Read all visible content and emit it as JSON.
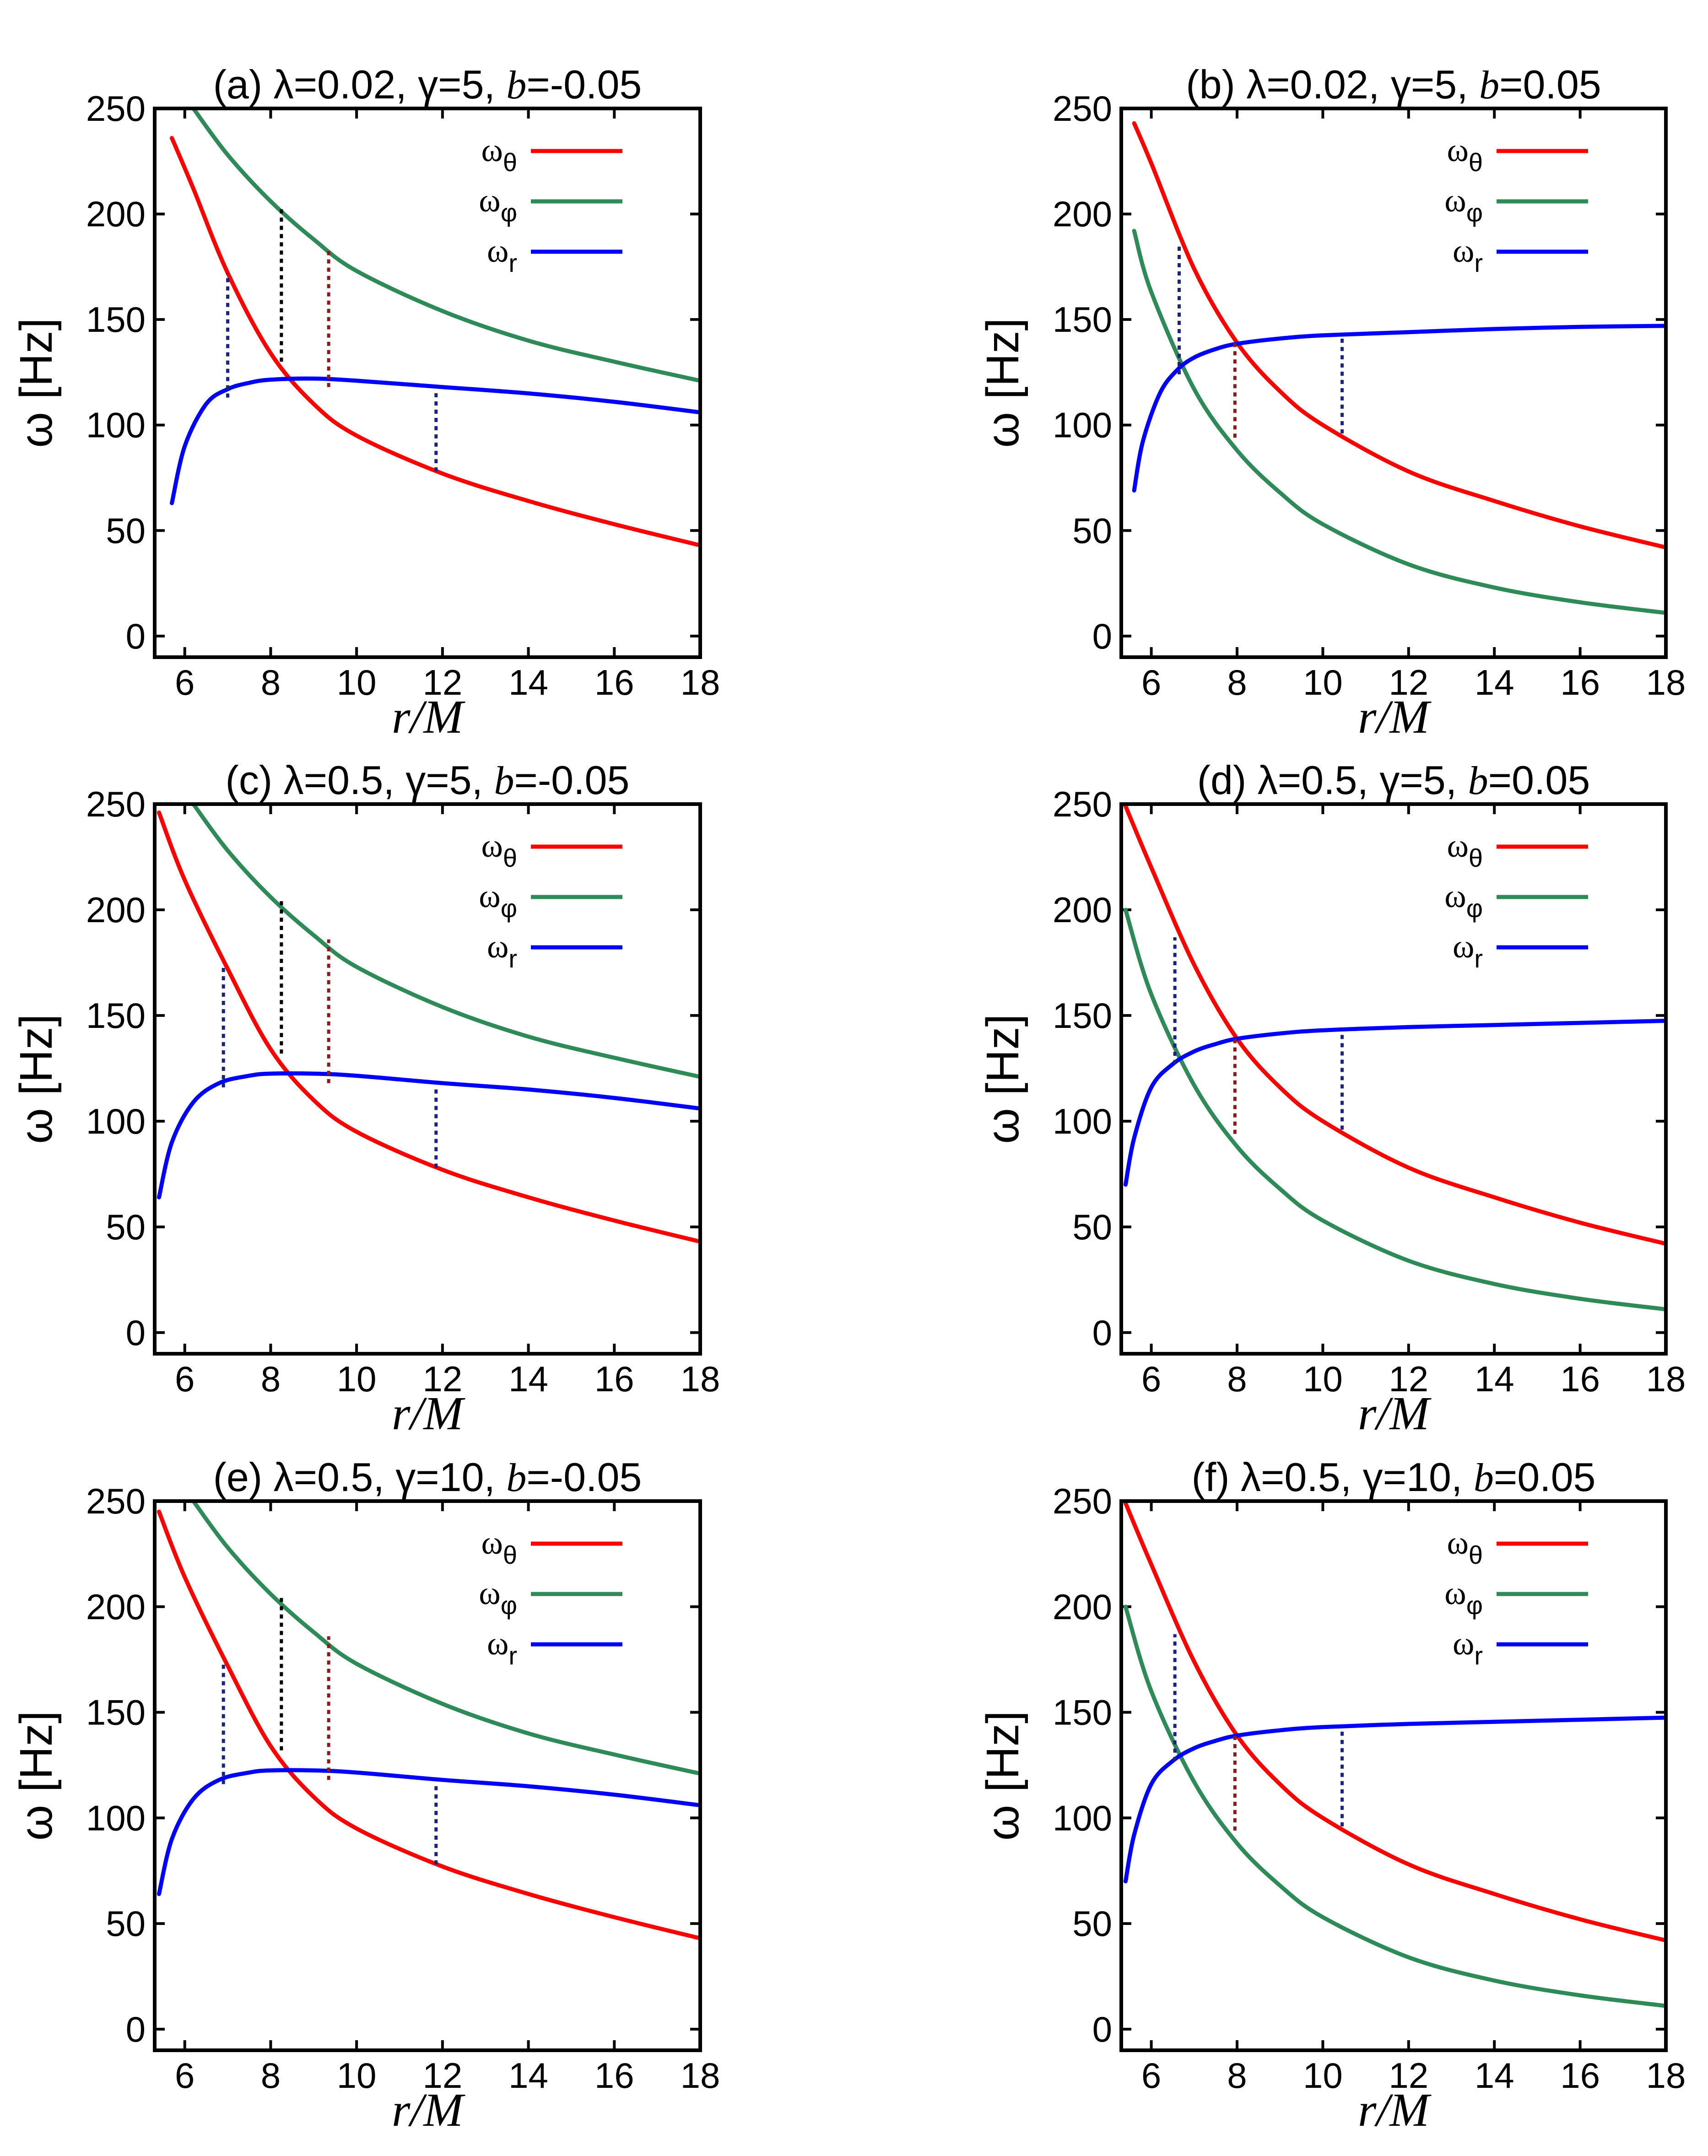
{
  "chart_data": [
    {
      "type": "line",
      "title": {
        "prefix": "(a) λ=0.02, γ=5, ",
        "b_symbol": "b",
        "b_value": "=-0.05"
      },
      "xlabel": "r/M",
      "ylabel": "ω [Hz]",
      "xlim": [
        5.3,
        18
      ],
      "ylim": [
        -10,
        250
      ],
      "xticks": [
        6,
        8,
        10,
        12,
        14,
        16,
        18
      ],
      "yticks": [
        0,
        50,
        100,
        150,
        200,
        250
      ],
      "legend_position": "top-right",
      "series": [
        {
          "name": "ωθ",
          "symbol": "ω",
          "sub": "θ",
          "color": "#ff0000",
          "x": [
            5.7,
            6.2,
            7.0,
            8.0,
            9.0,
            10.0,
            12.0,
            14.0,
            16.0,
            18.0
          ],
          "y": [
            236,
            212,
            172,
            134,
            110,
            95,
            77,
            64,
            53,
            43
          ]
        },
        {
          "name": "ωφ",
          "symbol": "ω",
          "sub": "φ",
          "color": "#2e8b57",
          "x": [
            6.2,
            7.0,
            8.0,
            9.0,
            10.0,
            12.0,
            14.0,
            16.0,
            18.0
          ],
          "y": [
            250,
            228,
            206,
            188,
            173,
            154,
            140,
            130,
            121
          ]
        },
        {
          "name": "ωr",
          "symbol": "ω",
          "sub": "r",
          "color": "#0000ff",
          "x": [
            5.7,
            6.0,
            6.5,
            7.0,
            7.5,
            8.0,
            9.0,
            10.0,
            12.0,
            14.0,
            16.0,
            18.0
          ],
          "y": [
            63,
            90,
            110,
            117,
            120,
            121.5,
            122,
            121,
            118,
            115,
            111,
            106
          ]
        }
      ],
      "markers": [
        {
          "x": 7.0,
          "y1": 113,
          "y2": 172,
          "color": "#1a237e"
        },
        {
          "x": 8.25,
          "y1": 130,
          "y2": 203,
          "color": "#000000"
        },
        {
          "x": 9.35,
          "y1": 118,
          "y2": 184,
          "color": "#8b1a1a"
        },
        {
          "x": 11.85,
          "y1": 78,
          "y2": 117,
          "color": "#1a237e"
        }
      ]
    },
    {
      "type": "line",
      "title": {
        "prefix": "(b) λ=0.02, γ=5, ",
        "b_symbol": "b",
        "b_value": "=0.05"
      },
      "xlabel": "r/M",
      "ylabel": "ω [Hz]",
      "xlim": [
        5.3,
        18
      ],
      "ylim": [
        -10,
        250
      ],
      "xticks": [
        6,
        8,
        10,
        12,
        14,
        16,
        18
      ],
      "yticks": [
        0,
        50,
        100,
        150,
        200,
        250
      ],
      "legend_position": "top-right",
      "series": [
        {
          "name": "ωθ",
          "symbol": "ω",
          "sub": "θ",
          "color": "#ff0000",
          "x": [
            5.6,
            6.0,
            7.0,
            8.0,
            9.0,
            10.0,
            12.0,
            14.0,
            16.0,
            18.0
          ],
          "y": [
            243,
            224,
            174,
            139,
            116,
            100,
            78,
            64,
            52,
            42
          ]
        },
        {
          "name": "ωφ",
          "symbol": "ω",
          "sub": "φ",
          "color": "#2e8b57",
          "x": [
            5.6,
            6.0,
            7.0,
            8.0,
            9.0,
            10.0,
            12.0,
            14.0,
            16.0,
            18.0
          ],
          "y": [
            192,
            163,
            117,
            88,
            68,
            53,
            34,
            23,
            16,
            11
          ]
        },
        {
          "name": "ωr",
          "symbol": "ω",
          "sub": "r",
          "color": "#0000ff",
          "x": [
            5.6,
            5.8,
            6.2,
            6.6,
            7.0,
            7.5,
            8.0,
            9.0,
            10.0,
            12.0,
            14.0,
            16.0,
            18.0
          ],
          "y": [
            69,
            92,
            115,
            126,
            132,
            136,
            138.5,
            141,
            142.5,
            144,
            145.5,
            146.5,
            147
          ]
        }
      ],
      "markers": [
        {
          "x": 6.65,
          "y1": 124,
          "y2": 185,
          "color": "#1a237e"
        },
        {
          "x": 7.95,
          "y1": 94,
          "y2": 139,
          "color": "#8b1a1a"
        },
        {
          "x": 10.45,
          "y1": 96,
          "y2": 143,
          "color": "#1a237e"
        }
      ]
    },
    {
      "type": "line",
      "title": {
        "prefix": "(c) λ=0.5, γ=5, ",
        "b_symbol": "b",
        "b_value": "=-0.05"
      },
      "xlabel": "r/M",
      "ylabel": "ω [Hz]",
      "xlim": [
        5.3,
        18
      ],
      "ylim": [
        -10,
        250
      ],
      "xticks": [
        6,
        8,
        10,
        12,
        14,
        16,
        18
      ],
      "yticks": [
        0,
        50,
        100,
        150,
        200,
        250
      ],
      "legend_position": "top-right",
      "series": [
        {
          "name": "ωθ",
          "symbol": "ω",
          "sub": "θ",
          "color": "#ff0000",
          "x": [
            5.4,
            6.0,
            7.0,
            8.0,
            9.0,
            10.0,
            12.0,
            14.0,
            16.0,
            18.0
          ],
          "y": [
            246,
            214,
            172,
            134,
            110,
            95,
            77,
            64,
            53,
            43
          ]
        },
        {
          "name": "ωφ",
          "symbol": "ω",
          "sub": "φ",
          "color": "#2e8b57",
          "x": [
            6.2,
            7.0,
            8.0,
            9.0,
            10.0,
            12.0,
            14.0,
            16.0,
            18.0
          ],
          "y": [
            250,
            228,
            206,
            188,
            173,
            154,
            140,
            130,
            121
          ]
        },
        {
          "name": "ωr",
          "symbol": "ω",
          "sub": "r",
          "color": "#0000ff",
          "x": [
            5.4,
            5.7,
            6.2,
            6.8,
            7.5,
            8.0,
            9.0,
            10.0,
            12.0,
            14.0,
            16.0,
            18.0
          ],
          "y": [
            64,
            90,
            109,
            118,
            121.5,
            122.5,
            122.5,
            121.5,
            118,
            115,
            111,
            106
          ]
        }
      ],
      "markers": [
        {
          "x": 6.9,
          "y1": 116,
          "y2": 173,
          "color": "#1a237e"
        },
        {
          "x": 8.25,
          "y1": 132,
          "y2": 205,
          "color": "#000000"
        },
        {
          "x": 9.35,
          "y1": 118,
          "y2": 186,
          "color": "#8b1a1a"
        },
        {
          "x": 11.85,
          "y1": 78,
          "y2": 117,
          "color": "#1a237e"
        }
      ]
    },
    {
      "type": "line",
      "title": {
        "prefix": "(d) λ=0.5, γ=5, ",
        "b_symbol": "b",
        "b_value": "=0.05"
      },
      "xlabel": "r/M",
      "ylabel": "ω [Hz]",
      "xlim": [
        5.3,
        18
      ],
      "ylim": [
        -10,
        250
      ],
      "xticks": [
        6,
        8,
        10,
        12,
        14,
        16,
        18
      ],
      "yticks": [
        0,
        50,
        100,
        150,
        200,
        250
      ],
      "legend_position": "top-right",
      "series": [
        {
          "name": "ωθ",
          "symbol": "ω",
          "sub": "θ",
          "color": "#ff0000",
          "x": [
            5.4,
            6.0,
            7.0,
            8.0,
            9.0,
            10.0,
            12.0,
            14.0,
            16.0,
            18.0
          ],
          "y": [
            249,
            220,
            174,
            139,
            116,
            100,
            78,
            64,
            52,
            42
          ]
        },
        {
          "name": "ωφ",
          "symbol": "ω",
          "sub": "φ",
          "color": "#2e8b57",
          "x": [
            5.4,
            6.0,
            7.0,
            8.0,
            9.0,
            10.0,
            12.0,
            14.0,
            16.0,
            18.0
          ],
          "y": [
            200,
            160,
            117,
            88,
            68,
            53,
            34,
            23,
            16,
            11
          ]
        },
        {
          "name": "ωr",
          "symbol": "ω",
          "sub": "r",
          "color": "#0000ff",
          "x": [
            5.4,
            5.6,
            6.0,
            6.5,
            7.0,
            7.5,
            8.0,
            9.0,
            10.0,
            12.0,
            14.0,
            16.0,
            18.0
          ],
          "y": [
            70,
            92,
            116,
            127,
            133,
            136.5,
            139,
            141.5,
            143,
            144.5,
            145.5,
            146.5,
            147.5
          ]
        }
      ],
      "markers": [
        {
          "x": 6.55,
          "y1": 127,
          "y2": 187,
          "color": "#1a237e"
        },
        {
          "x": 7.95,
          "y1": 94,
          "y2": 139,
          "color": "#8b1a1a"
        },
        {
          "x": 10.45,
          "y1": 96,
          "y2": 143,
          "color": "#1a237e"
        }
      ]
    },
    {
      "type": "line",
      "title": {
        "prefix": "(e) λ=0.5, γ=10, ",
        "b_symbol": "b",
        "b_value": "=-0.05"
      },
      "xlabel": "r/M",
      "ylabel": "ω [Hz]",
      "xlim": [
        5.3,
        18
      ],
      "ylim": [
        -10,
        250
      ],
      "xticks": [
        6,
        8,
        10,
        12,
        14,
        16,
        18
      ],
      "yticks": [
        0,
        50,
        100,
        150,
        200,
        250
      ],
      "legend_position": "top-right",
      "series": [
        {
          "name": "ωθ",
          "symbol": "ω",
          "sub": "θ",
          "color": "#ff0000",
          "x": [
            5.4,
            6.0,
            7.0,
            8.0,
            9.0,
            10.0,
            12.0,
            14.0,
            16.0,
            18.0
          ],
          "y": [
            245,
            214,
            172,
            134,
            110,
            95,
            77,
            64,
            53,
            43
          ]
        },
        {
          "name": "ωφ",
          "symbol": "ω",
          "sub": "φ",
          "color": "#2e8b57",
          "x": [
            6.2,
            7.0,
            8.0,
            9.0,
            10.0,
            12.0,
            14.0,
            16.0,
            18.0
          ],
          "y": [
            250,
            228,
            206,
            188,
            173,
            154,
            140,
            130,
            121
          ]
        },
        {
          "name": "ωr",
          "symbol": "ω",
          "sub": "r",
          "color": "#0000ff",
          "x": [
            5.4,
            5.7,
            6.2,
            6.8,
            7.5,
            8.0,
            9.0,
            10.0,
            12.0,
            14.0,
            16.0,
            18.0
          ],
          "y": [
            64,
            90,
            109,
            118,
            121.5,
            122.5,
            122.5,
            121.5,
            118,
            115,
            111,
            106
          ]
        }
      ],
      "markers": [
        {
          "x": 6.9,
          "y1": 116,
          "y2": 173,
          "color": "#1a237e"
        },
        {
          "x": 8.25,
          "y1": 132,
          "y2": 205,
          "color": "#000000"
        },
        {
          "x": 9.35,
          "y1": 118,
          "y2": 186,
          "color": "#8b1a1a"
        },
        {
          "x": 11.85,
          "y1": 78,
          "y2": 117,
          "color": "#1a237e"
        }
      ]
    },
    {
      "type": "line",
      "title": {
        "prefix": "(f) λ=0.5, γ=10, ",
        "b_symbol": "b",
        "b_value": "=0.05"
      },
      "xlabel": "r/M",
      "ylabel": "ω [Hz]",
      "xlim": [
        5.3,
        18
      ],
      "ylim": [
        -10,
        250
      ],
      "xticks": [
        6,
        8,
        10,
        12,
        14,
        16,
        18
      ],
      "yticks": [
        0,
        50,
        100,
        150,
        200,
        250
      ],
      "legend_position": "top-right",
      "series": [
        {
          "name": "ωθ",
          "symbol": "ω",
          "sub": "θ",
          "color": "#ff0000",
          "x": [
            5.4,
            6.0,
            7.0,
            8.0,
            9.0,
            10.0,
            12.0,
            14.0,
            16.0,
            18.0
          ],
          "y": [
            249,
            220,
            174,
            139,
            116,
            100,
            78,
            64,
            52,
            42
          ]
        },
        {
          "name": "ωφ",
          "symbol": "ω",
          "sub": "φ",
          "color": "#2e8b57",
          "x": [
            5.4,
            6.0,
            7.0,
            8.0,
            9.0,
            10.0,
            12.0,
            14.0,
            16.0,
            18.0
          ],
          "y": [
            200,
            160,
            117,
            88,
            68,
            53,
            34,
            23,
            16,
            11
          ]
        },
        {
          "name": "ωr",
          "symbol": "ω",
          "sub": "r",
          "color": "#0000ff",
          "x": [
            5.4,
            5.6,
            6.0,
            6.5,
            7.0,
            7.5,
            8.0,
            9.0,
            10.0,
            12.0,
            14.0,
            16.0,
            18.0
          ],
          "y": [
            70,
            92,
            116,
            127,
            133,
            136.5,
            139,
            141.5,
            143,
            144.5,
            145.5,
            146.5,
            147.5
          ]
        }
      ],
      "markers": [
        {
          "x": 6.55,
          "y1": 127,
          "y2": 187,
          "color": "#1a237e"
        },
        {
          "x": 7.95,
          "y1": 94,
          "y2": 139,
          "color": "#8b1a1a"
        },
        {
          "x": 10.45,
          "y1": 96,
          "y2": 143,
          "color": "#1a237e"
        }
      ]
    }
  ]
}
